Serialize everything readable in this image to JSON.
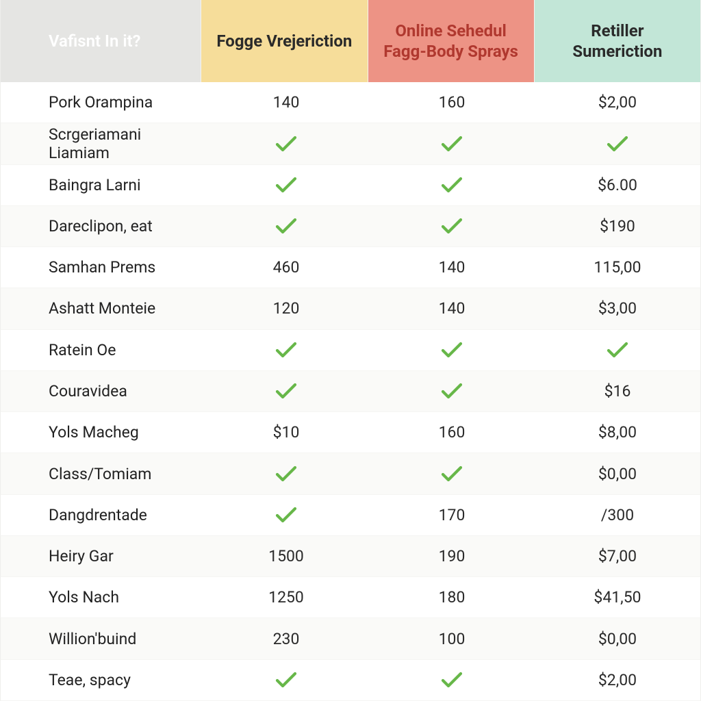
{
  "colors": {
    "header_bg_label": "#e5e5e3",
    "header_bg_col1": "#f6dd9a",
    "header_bg_col2": "#ed9385",
    "header_bg_col3": "#c2e6d7",
    "header_text_col1": "#2a2a2a",
    "header_text_col2": "#b0382f",
    "header_text_col3": "#2a2a2a",
    "row_alt_bg": "#fafaf8",
    "checkmark": "#67b749",
    "cell_text": "#2a2a2a",
    "grid_line": "#eeeeec"
  },
  "header": {
    "label": "Vafisnt In it?",
    "col1": "Fogge Vrejeriction",
    "col2": "Online Sehedul Fagg-Body Sprays",
    "col3": "Retiller Sumeriction"
  },
  "check_icon_name": "checkmark-icon",
  "rows": [
    {
      "label": "Pork Orampina",
      "c1": "140",
      "c2": "160",
      "c3": "$2,00"
    },
    {
      "label": "Scrgeriamani Liamiam",
      "c1": "✓",
      "c2": "✓",
      "c3": "✓"
    },
    {
      "label": "Baingra Larni",
      "c1": "✓",
      "c2": "✓",
      "c3": "$6.00"
    },
    {
      "label": "Dareclipon, eat",
      "c1": "✓",
      "c2": "✓",
      "c3": "$190"
    },
    {
      "label": "Samhan Prems",
      "c1": "460",
      "c2": "140",
      "c3": "115,00"
    },
    {
      "label": "Ashatt Monteie",
      "c1": "120",
      "c2": "140",
      "c3": "$3,00"
    },
    {
      "label": "Ratein Oe",
      "c1": "✓",
      "c2": "✓",
      "c3": "✓"
    },
    {
      "label": "Couravidea",
      "c1": "✓",
      "c2": "✓",
      "c3": "$16"
    },
    {
      "label": "Yols Macheg",
      "c1": "$10",
      "c2": "160",
      "c3": "$8,00"
    },
    {
      "label": "Class/Tomiam",
      "c1": "✓",
      "c2": "✓",
      "c3": "$0,00"
    },
    {
      "label": "Dangdrentade",
      "c1": "✓",
      "c2": "170",
      "c3": "/300"
    },
    {
      "label": "Heiry Gar",
      "c1": "1500",
      "c2": "190",
      "c3": "$7,00"
    },
    {
      "label": "Yols Nach",
      "c1": "1250",
      "c2": "180",
      "c3": "$41,50"
    },
    {
      "label": "Willion'buind",
      "c1": "230",
      "c2": "100",
      "c3": "$0,00"
    },
    {
      "label": "Teae, spacy",
      "c1": "✓",
      "c2": "✓",
      "c3": "$2,00"
    }
  ]
}
